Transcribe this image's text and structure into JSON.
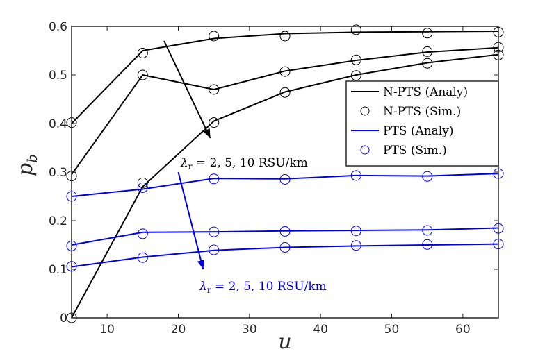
{
  "chart_data": {
    "type": "line",
    "title": "",
    "xlabel": "u",
    "ylabel": "p_b",
    "xlim": [
      5,
      65
    ],
    "ylim": [
      0,
      0.6
    ],
    "grid": false,
    "xticks": [
      10,
      20,
      30,
      40,
      50,
      60
    ],
    "yticks": [
      0,
      0.1,
      0.2,
      0.3,
      0.4,
      0.5,
      0.6
    ],
    "x": [
      5,
      15,
      25,
      35,
      45,
      55,
      65
    ],
    "colors": {
      "black": "#000000",
      "blue": "#0000e6"
    },
    "series": [
      {
        "name": "N-PTS (Analy)",
        "kind": "line",
        "color": "black",
        "values": [
          0.4,
          0.55,
          0.575,
          0.585,
          0.588,
          0.589,
          0.59
        ]
      },
      {
        "name": "N-PTS (Analy)",
        "kind": "line",
        "color": "black",
        "values": [
          0.295,
          0.5,
          0.47,
          0.508,
          0.53,
          0.547,
          0.556
        ]
      },
      {
        "name": "N-PTS (Analy)",
        "kind": "line",
        "color": "black",
        "values": [
          0.0,
          0.27,
          0.405,
          0.465,
          0.5,
          0.525,
          0.542
        ]
      },
      {
        "name": "N-PTS (Sim.)",
        "kind": "marker",
        "color": "black",
        "values": [
          0.402,
          0.545,
          0.58,
          0.58,
          0.593,
          0.586,
          0.588
        ]
      },
      {
        "name": "N-PTS (Sim.)",
        "kind": "marker",
        "color": "black",
        "values": [
          0.292,
          0.5,
          0.47,
          0.507,
          0.531,
          0.548,
          0.557
        ]
      },
      {
        "name": "N-PTS (Sim.)",
        "kind": "marker",
        "color": "black",
        "values": [
          0.0,
          0.278,
          0.402,
          0.464,
          0.499,
          0.524,
          0.541
        ]
      },
      {
        "name": "PTS (Analy)",
        "kind": "line",
        "color": "blue",
        "values": [
          0.25,
          0.265,
          0.287,
          0.286,
          0.293,
          0.292,
          0.297
        ]
      },
      {
        "name": "PTS (Analy)",
        "kind": "line",
        "color": "blue",
        "values": [
          0.15,
          0.176,
          0.177,
          0.179,
          0.18,
          0.181,
          0.185
        ]
      },
      {
        "name": "PTS (Analy)",
        "kind": "line",
        "color": "blue",
        "values": [
          0.105,
          0.125,
          0.139,
          0.145,
          0.148,
          0.15,
          0.152
        ]
      },
      {
        "name": "PTS (Sim.)",
        "kind": "marker",
        "color": "blue",
        "values": [
          0.25,
          0.268,
          0.286,
          0.285,
          0.293,
          0.291,
          0.297
        ]
      },
      {
        "name": "PTS (Sim.)",
        "kind": "marker",
        "color": "blue",
        "values": [
          0.148,
          0.173,
          0.177,
          0.178,
          0.179,
          0.18,
          0.184
        ]
      },
      {
        "name": "PTS (Sim.)",
        "kind": "marker",
        "color": "blue",
        "values": [
          0.106,
          0.124,
          0.14,
          0.145,
          0.149,
          0.151,
          0.152
        ]
      }
    ],
    "legend": {
      "placement": "right",
      "entries": [
        "N-PTS (Analy)",
        "N-PTS (Sim.)",
        "PTS (Analy)",
        "PTS (Sim.)"
      ]
    },
    "annotations": [
      {
        "lambda": "λ",
        "sub": "r",
        "rest": " = 2, 5, 10 RSU/km",
        "color": "black",
        "arrow_from": [
          18,
          0.57
        ],
        "arrow_to": [
          24.5,
          0.37
        ]
      },
      {
        "lambda": "λ",
        "sub": "r",
        "rest": " = 2, 5, 10 RSU/km",
        "color": "blue",
        "arrow_from": [
          20,
          0.3
        ],
        "arrow_to": [
          23.5,
          0.1
        ]
      }
    ]
  }
}
